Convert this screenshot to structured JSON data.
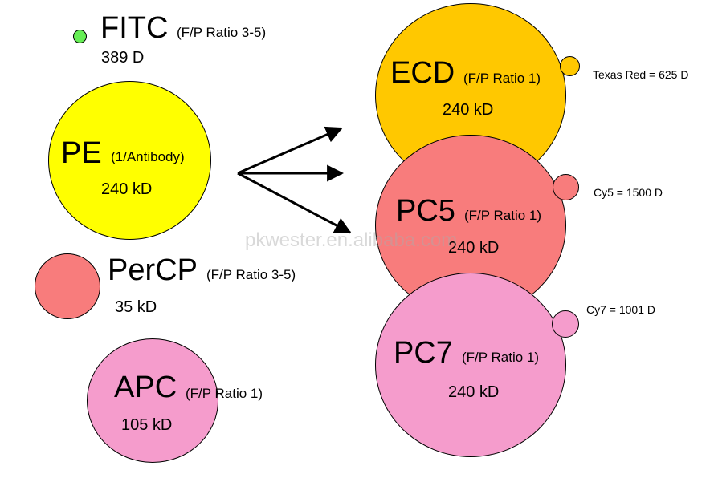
{
  "fitc": {
    "name": "FITC",
    "ratio": "(F/P Ratio 3-5)",
    "size": "389 D",
    "color": "#66ee55"
  },
  "pe": {
    "name": "PE",
    "ratio": "(1/Antibody)",
    "size": "240 kD",
    "color": "#ffff00"
  },
  "percp": {
    "name": "PerCP",
    "ratio": "(F/P Ratio 3-5)",
    "size": "35 kD",
    "color": "#f87c7c"
  },
  "apc": {
    "name": "APC",
    "ratio": "(F/P Ratio 1)",
    "size": "105 kD",
    "color": "#f59ccc"
  },
  "ecd": {
    "name": "ECD",
    "ratio": "(F/P Ratio 1)",
    "size": "240 kD",
    "color": "#ffc800",
    "dye_note": "Texas Red = 625 D"
  },
  "pc5": {
    "name": "PC5",
    "ratio": "(F/P Ratio 1)",
    "size": "240 kD",
    "color": "#f87c7c",
    "dye_note": "Cy5 = 1500 D"
  },
  "pc7": {
    "name": "PC7",
    "ratio": "(F/P Ratio 1)",
    "size": "240 kD",
    "color": "#f59ccc",
    "dye_note": "Cy7 = 1001 D"
  },
  "watermark": "pkwester.en.alibaba.com"
}
